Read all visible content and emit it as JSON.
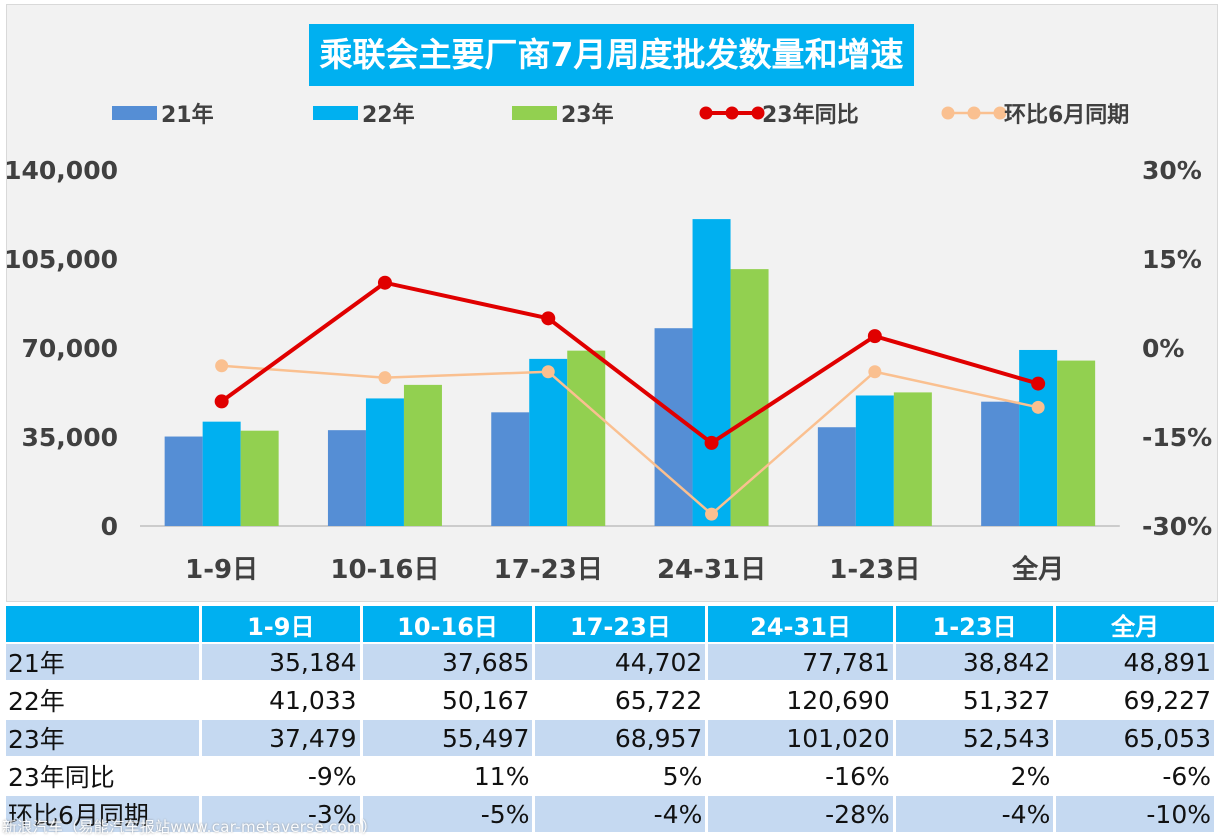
{
  "chart_data": {
    "type": "bar",
    "title": "乘联会主要厂商7月周度批发数量和增速",
    "categories": [
      "1-9日",
      "10-16日",
      "17-23日",
      "24-31日",
      "1-23日",
      "全月"
    ],
    "series": [
      {
        "name": "21年",
        "kind": "bar",
        "axis": "left",
        "color": "#558ed5",
        "values": [
          35184,
          37685,
          44702,
          77781,
          38842,
          48891
        ]
      },
      {
        "name": "22年",
        "kind": "bar",
        "axis": "left",
        "color": "#00b0f0",
        "values": [
          41033,
          50167,
          65722,
          120690,
          51327,
          69227
        ]
      },
      {
        "name": "23年",
        "kind": "bar",
        "axis": "left",
        "color": "#92d050",
        "values": [
          37479,
          55497,
          68957,
          101020,
          52543,
          65053
        ]
      },
      {
        "name": "23年同比",
        "kind": "line",
        "axis": "right",
        "color": "#e00000",
        "values": [
          -9,
          11,
          5,
          -16,
          2,
          -6
        ]
      },
      {
        "name": "环比6月同期",
        "kind": "line",
        "axis": "right",
        "color": "#fac090",
        "values": [
          -3,
          -5,
          -4,
          -28,
          -4,
          -10
        ]
      }
    ],
    "y_left": {
      "min": 0,
      "max": 140000,
      "ticks": [
        "140,000",
        "105,000",
        "70,000",
        "35,000",
        "0"
      ]
    },
    "y_right": {
      "min": -30,
      "max": 30,
      "ticks": [
        "30%",
        "15%",
        "0%",
        "-15%",
        "-30%"
      ]
    },
    "legend_position": "top",
    "grid": false
  },
  "table": {
    "headers": [
      "1-9日",
      "10-16日",
      "17-23日",
      "24-31日",
      "1-23日",
      "全月"
    ],
    "rows": [
      {
        "label": "21年",
        "cells": [
          "35,184",
          "37,685",
          "44,702",
          "77,781",
          "38,842",
          "48,891"
        ]
      },
      {
        "label": "22年",
        "cells": [
          "41,033",
          "50,167",
          "65,722",
          "120,690",
          "51,327",
          "69,227"
        ]
      },
      {
        "label": "23年",
        "cells": [
          "37,479",
          "55,497",
          "68,957",
          "101,020",
          "52,543",
          "65,053"
        ]
      },
      {
        "label": "23年同比",
        "cells": [
          "-9%",
          "11%",
          "5%",
          "-16%",
          "2%",
          "-6%"
        ]
      },
      {
        "label": "环比6月同期",
        "cells": [
          "-3%",
          "-5%",
          "-4%",
          "-28%",
          "-4%",
          "-10%"
        ]
      }
    ]
  },
  "watermark": "新浪汽车（易能汽车报站www.car-metaverse.com）"
}
